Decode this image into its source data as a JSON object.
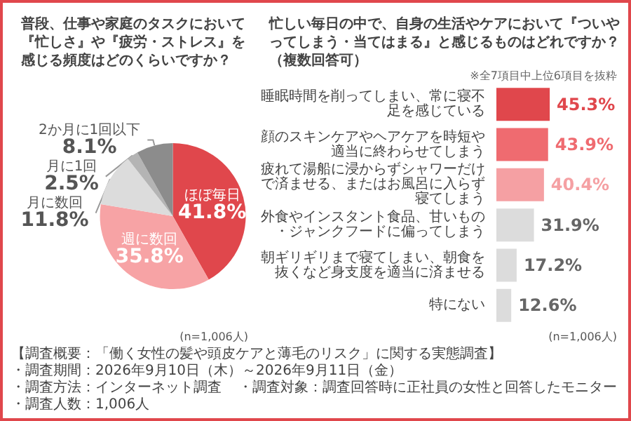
{
  "chart_data": [
    {
      "type": "pie",
      "title": "普段、仕事や家庭のタスクにおいて『忙しさ』や『疲労・ストレス』を感じる頻度はどのくらいですか？",
      "categories": [
        "ほぼ毎日",
        "週に数回",
        "月に数回",
        "月に1回",
        "2か月に1回以下"
      ],
      "values": [
        41.8,
        35.8,
        11.8,
        2.5,
        8.1
      ],
      "colors": [
        "#e0474c",
        "#f7a3a5",
        "#dcdcdc",
        "#b4b4b4",
        "#8c8c8c"
      ],
      "value_labels": [
        "41.8%",
        "35.8%",
        "11.8%",
        "2.5%",
        "8.1%"
      ],
      "annotations": [
        "(n=1,006人)",
        "【調査概要：「働く女性の髪や頭皮ケアと薄毛のリスク」に関する実態調査】",
        "・調査期間：2026年9月10日（木）～2026年9月11日（金）",
        "・調査方法：インターネット調査",
        "・調査対象：調査回答時に正社員の女性と回答したモニター",
        "・調査人数：1,006人"
      ]
    },
    {
      "type": "bar",
      "orientation": "horizontal",
      "title": "忙しい毎日の中で、自身の生活やケアにおいて『ついやってしまう・当てはまる』と感じるものはどれですか？（複数回答可）",
      "categories": [
        "睡眠時間を削ってしまい、常に寝不足を感じている",
        "顔のスキンケアやヘアケアを時短や適当に終わらせてしまう",
        "疲れて湯船に浸からずシャワーだけで済ませる、またはお風呂に入らず寝てしまう",
        "外食やインスタント食品、甘いもの・ジャンクフードに偏ってしまう",
        "朝ギリギリまで寝てしまい、朝食を抜くなど身支度を適当に済ませる",
        "特にない"
      ],
      "values": [
        45.3,
        43.9,
        40.4,
        31.9,
        17.2,
        12.6
      ],
      "colors": [
        "#e0474c",
        "#ef6b70",
        "#f5a0a3",
        "#dcdcdc",
        "#dcdcdc",
        "#dcdcdc"
      ],
      "value_labels": [
        "45.3%",
        "43.9%",
        "40.4%",
        "31.9%",
        "17.2%",
        "12.6%"
      ],
      "annotations": [
        "※全7項目中上位6項目を抜粋",
        "(n=1,006人)"
      ]
    }
  ]
}
